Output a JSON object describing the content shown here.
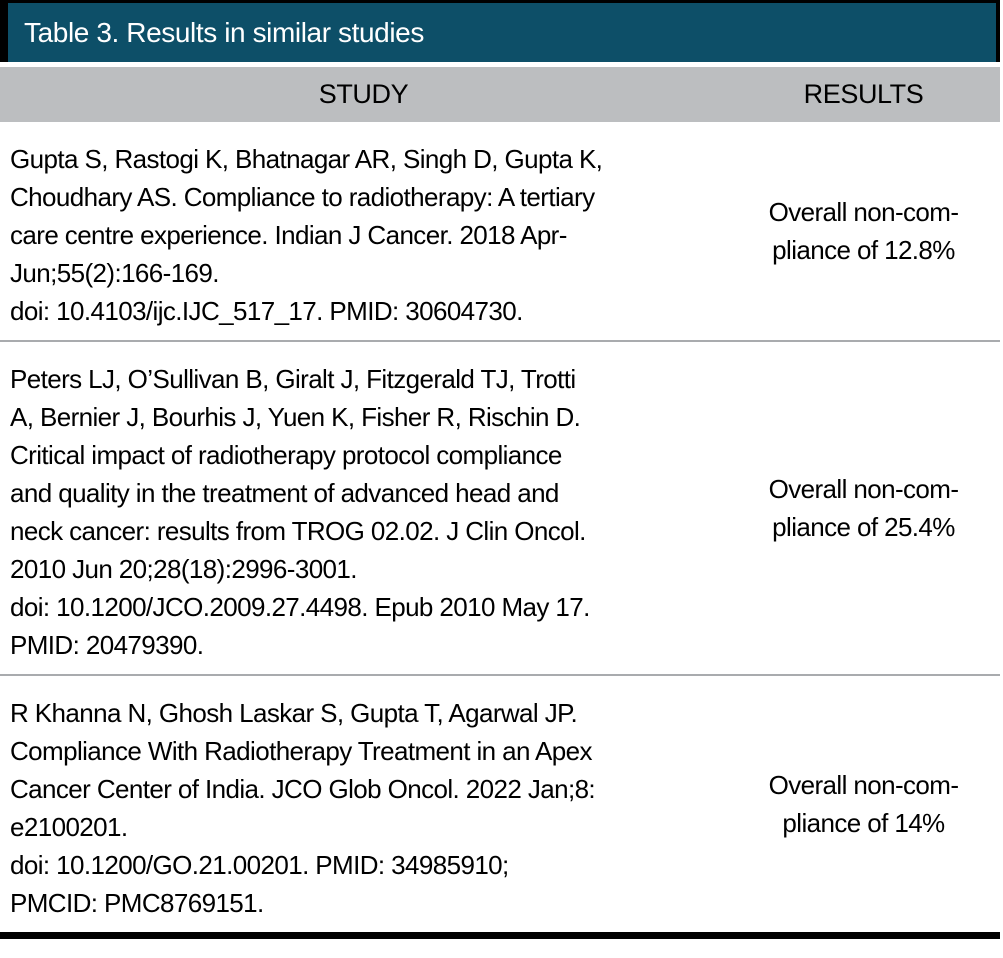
{
  "table": {
    "title": "Table 3. Results in similar studies",
    "header": {
      "study": "STUDY",
      "results": "RESULTS"
    },
    "rows": [
      {
        "study_lines": [
          "Gupta S, Rastogi K, Bhatnagar AR, Singh D, Gupta K,",
          "Choudhary AS. Compliance to radiotherapy: A tertiary",
          "care centre experience. Indian J Cancer. 2018 Apr-",
          "Jun;55(2):166-169.",
          "doi: 10.4103/ijc.IJC_517_17. PMID: 30604730."
        ],
        "result_lines": [
          "Overall non-com-",
          "pliance of 12.8%"
        ]
      },
      {
        "study_lines": [
          "Peters LJ, O’Sullivan B, Giralt J, Fitzgerald TJ, Trotti",
          "A, Bernier J, Bourhis J, Yuen K, Fisher R, Rischin D.",
          "Critical impact of radiotherapy protocol compliance",
          "and quality in the treatment of advanced head and",
          "neck cancer: results from TROG 02.02. J Clin Oncol.",
          "2010 Jun 20;28(18):2996-3001.",
          "doi: 10.1200/JCO.2009.27.4498. Epub 2010 May 17.",
          "PMID: 20479390."
        ],
        "result_lines": [
          "Overall non-com-",
          "pliance of 25.4%"
        ]
      },
      {
        "study_lines": [
          "R Khanna N, Ghosh Laskar S, Gupta T, Agarwal JP.",
          "Compliance With Radiotherapy Treatment in an Apex",
          "Cancer Center of India. JCO Glob Oncol. 2022 Jan;8:",
          "e2100201.",
          "doi: 10.1200/GO.21.00201. PMID: 34985910;",
          "PMCID: PMC8769151."
        ],
        "result_lines": [
          "Overall non-com-",
          "pliance of 14%"
        ]
      }
    ],
    "colors": {
      "title_bg": "#0d4f68",
      "title_text": "#ffffff",
      "header_bg": "#bcbec0",
      "divider": "#a9abae",
      "border": "#000000"
    }
  }
}
